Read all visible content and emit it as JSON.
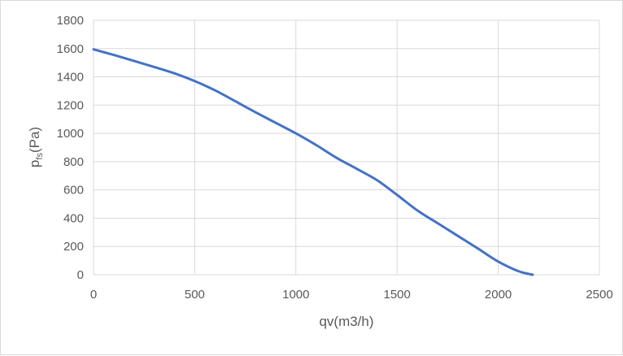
{
  "chart_data": {
    "type": "line",
    "title": "",
    "xlabel": "qv(m3/h)",
    "ylabel": {
      "main": "p",
      "subscript": "fs",
      "unit": "(Pa)"
    },
    "xlim": [
      0,
      2500
    ],
    "ylim": [
      0,
      1800
    ],
    "xticks": [
      "0",
      "500",
      "1000",
      "1500",
      "2000",
      "2500"
    ],
    "yticks": [
      "0",
      "200",
      "400",
      "600",
      "800",
      "1000",
      "1200",
      "1400",
      "1600",
      "1800"
    ],
    "grid": true,
    "series": [
      {
        "color": "#4472c4",
        "x": [
          0,
          100,
          200,
          300,
          400,
          500,
          600,
          700,
          800,
          900,
          1000,
          1100,
          1200,
          1300,
          1400,
          1500,
          1600,
          1700,
          1800,
          1900,
          2000,
          2100,
          2170
        ],
        "y": [
          1595,
          1555,
          1513,
          1470,
          1425,
          1370,
          1305,
          1228,
          1150,
          1075,
          1000,
          918,
          828,
          750,
          670,
          565,
          455,
          365,
          275,
          185,
          93,
          25,
          0
        ]
      }
    ]
  }
}
